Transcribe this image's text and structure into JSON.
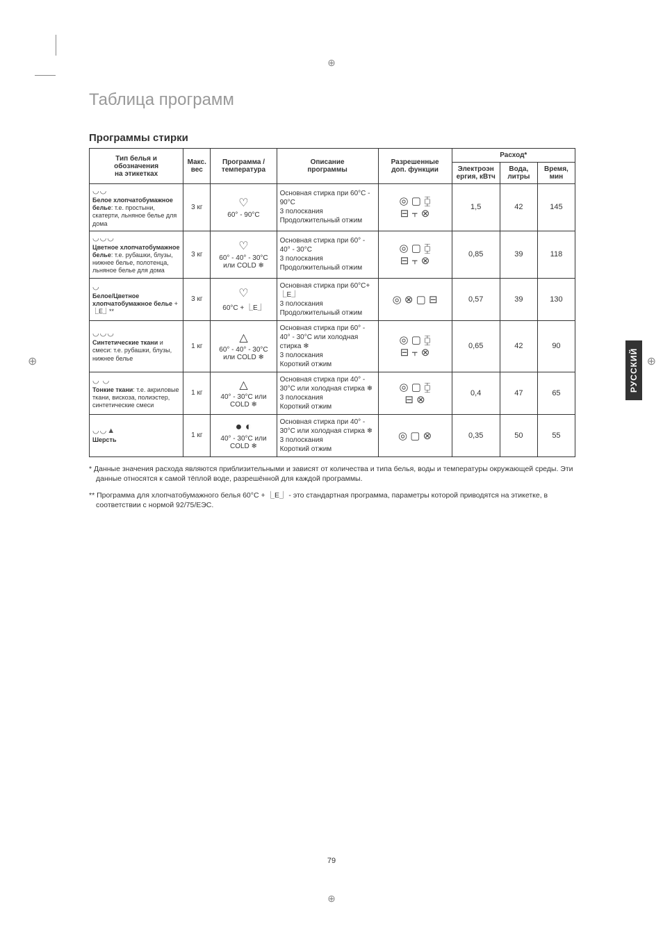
{
  "meta": {
    "title": "Таблица программ",
    "section": "Программы стирки",
    "side_tab": "РУССКИЙ",
    "page_number": "79"
  },
  "headers": {
    "col1_line1": "Тип белья и",
    "col1_line2": "обозначения",
    "col1_line3": "на этикетках",
    "col2_line1": "Макс.",
    "col2_line2": "вес",
    "col3_line1": "Программа /",
    "col3_line2": "температура",
    "col4_line1": "Описание",
    "col4_line2": "программы",
    "col5_line1": "Разрешенные",
    "col5_line2": "доп. функции",
    "col6": "Расход*",
    "col6a_line1": "Электроэн",
    "col6a_line2": "ергия, кВтч",
    "col6b_line1": "Вода,",
    "col6b_line2": "литры",
    "col6c_line1": "Время,",
    "col6c_line2": "мин"
  },
  "rows": [
    {
      "icons": "◡◡",
      "label_bold": "Белое хлопчатобумажное белье",
      "label_rest": ": т.е. простыни, скатерти, льняное белье для дома",
      "weight": "3 кг",
      "prog_icon": "♡",
      "prog_temp": "60° - 90°C",
      "desc": "Основная стирка при 60°C - 90°C\n3 полоскания\nПродолжительный отжим",
      "func": "◎ ▢ ⧮\n⊟ ⫟ ⊗",
      "energy": "1,5",
      "water": "42",
      "time": "145"
    },
    {
      "icons": "◡◡◡",
      "label_bold": "Цветное хлопчатобумажное белье",
      "label_rest": ": т.е. рубашки, блузы, нижнее белье, полотенца, льняное белье для дома",
      "weight": "3 кг",
      "prog_icon": "♡",
      "prog_temp": "60° - 40° - 30°C или COLD ❄",
      "desc": "Основная стирка при 60° - 40° - 30°C\n3 полоскания\nПродолжительный отжим",
      "func": "◎ ▢ ⧮\n⊟ ⫟ ⊗",
      "energy": "0,85",
      "water": "39",
      "time": "118"
    },
    {
      "icons": "◡",
      "label_bold": "Белое/Цветное хлопчатобумажное белье",
      "label_rest": " + ⎿E⏌**",
      "weight": "3 кг",
      "prog_icon": "♡",
      "prog_temp": "60°C + ⎿E⏌",
      "desc": "Основная стирка при 60°C+ ⎿E⏌\n3 полоскания\nПродолжительный отжим",
      "func": "◎ ⊗ ▢ ⊟",
      "energy": "0,57",
      "water": "39",
      "time": "130"
    },
    {
      "icons": "◡◡◡",
      "label_bold": "Синтетические ткани",
      "label_rest": " и смеси: т.е. рубашки, блузы, нижнее белье",
      "weight": "1 кг",
      "prog_icon": "△",
      "prog_temp": "60° - 40° - 30°C или COLD ❄",
      "desc": "Основная стирка при 60° - 40° - 30°C или холодная стирка ❄\n3 полоскания\nКороткий отжим",
      "func": "◎ ▢ ⧮\n⊟ ⫟ ⊗",
      "energy": "0,65",
      "water": "42",
      "time": "90"
    },
    {
      "icons": "◡ ◡",
      "label_bold": "Тонкие ткани",
      "label_rest": ": т.е. акриловые ткани, вискоза, полиэстер, синтетические смеси",
      "weight": "1 кг",
      "prog_icon": "△",
      "prog_temp": "40° - 30°C или COLD ❄",
      "desc": "Основная стирка при 40° - 30°C или холодная стирка ❄\n3 полоскания\nКороткий отжим",
      "func": "◎ ▢ ⧮\n⊟ ⊗",
      "energy": "0,4",
      "water": "47",
      "time": "65"
    },
    {
      "icons": "◡◡▲",
      "label_bold": "Шерсть",
      "label_rest": "",
      "weight": "1 кг",
      "prog_icon": "● ◐",
      "prog_temp": "40° - 30°C или COLD ❄",
      "desc": "Основная стирка при 40° - 30°C или холодная стирка ❄\n3 полоскания\nКороткий отжим",
      "func": "◎ ▢ ⊗",
      "energy": "0,35",
      "water": "50",
      "time": "55"
    }
  ],
  "footnotes": {
    "f1": "* Данные значения расхода являются приблизительными и зависят от количества и типа белья, воды и температуры окружающей среды. Эти данные относятся к самой тёплой воде, разрешённой для каждой программы.",
    "f2": "** Программа для хлопчатобумажного белья 60°C + ⎿E⏌ - это стандартная программа, параметры которой приводятся на этикетке, в соответствии с нормой 92/75/ЕЭС."
  }
}
